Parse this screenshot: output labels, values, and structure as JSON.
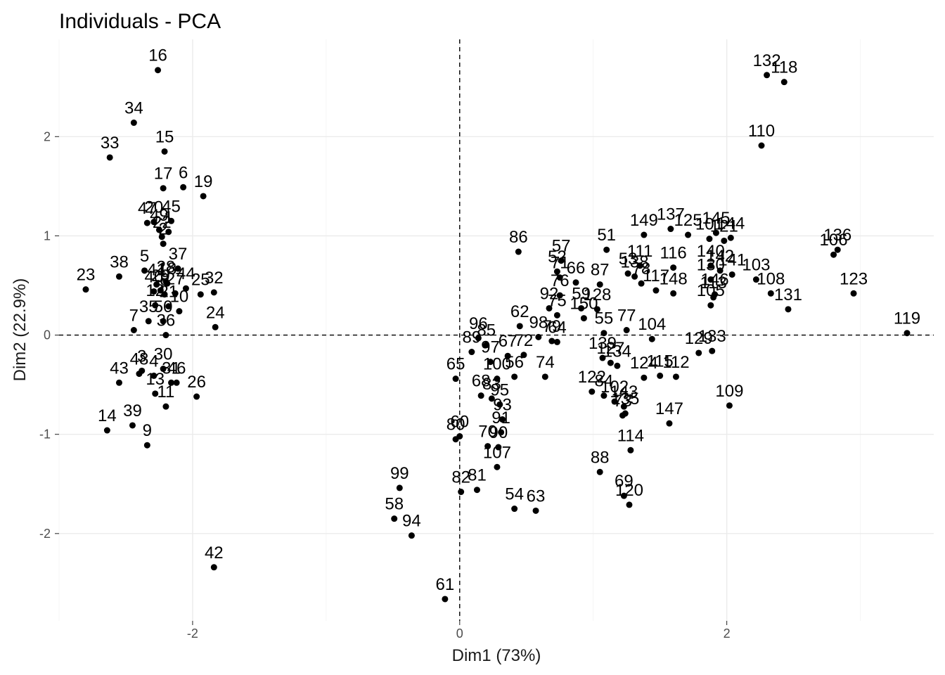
{
  "chart_data": {
    "type": "scatter",
    "title": "Individuals - PCA",
    "xlabel": "Dim1 (73%)",
    "ylabel": "Dim2 (22.9%)",
    "xlim": [
      -3.0,
      3.55
    ],
    "ylim": [
      -2.88,
      2.98
    ],
    "xticks": [
      -2,
      0,
      2
    ],
    "yticks": [
      -2,
      -1,
      0,
      1,
      2
    ],
    "grid": true,
    "reference_lines": "dashed at x=0 and y=0",
    "points": [
      {
        "label": "16",
        "x": -2.26,
        "y": 2.67
      },
      {
        "label": "34",
        "x": -2.44,
        "y": 2.14
      },
      {
        "label": "33",
        "x": -2.62,
        "y": 1.79
      },
      {
        "label": "15",
        "x": -2.21,
        "y": 1.85
      },
      {
        "label": "17",
        "x": -2.22,
        "y": 1.48
      },
      {
        "label": "6",
        "x": -2.07,
        "y": 1.49
      },
      {
        "label": "19",
        "x": -1.92,
        "y": 1.4
      },
      {
        "label": "47",
        "x": -2.34,
        "y": 1.13
      },
      {
        "label": "20",
        "x": -2.29,
        "y": 1.14
      },
      {
        "label": "45",
        "x": -2.16,
        "y": 1.15
      },
      {
        "label": "49",
        "x": -2.25,
        "y": 1.06
      },
      {
        "label": "1",
        "x": -2.18,
        "y": 1.04
      },
      {
        "label": "22",
        "x": -2.23,
        "y": 0.99
      },
      {
        "label": "2",
        "x": -2.22,
        "y": 0.92
      },
      {
        "label": "37",
        "x": -2.11,
        "y": 0.67
      },
      {
        "label": "38",
        "x": -2.55,
        "y": 0.59
      },
      {
        "label": "5",
        "x": -2.36,
        "y": 0.65
      },
      {
        "label": "23",
        "x": -2.8,
        "y": 0.46
      },
      {
        "label": "41",
        "x": -2.27,
        "y": 0.51
      },
      {
        "label": "18",
        "x": -2.19,
        "y": 0.52
      },
      {
        "label": "28",
        "x": -2.2,
        "y": 0.54
      },
      {
        "label": "44",
        "x": -2.05,
        "y": 0.47
      },
      {
        "label": "25",
        "x": -1.94,
        "y": 0.41
      },
      {
        "label": "32",
        "x": -1.84,
        "y": 0.43
      },
      {
        "label": "29",
        "x": -2.24,
        "y": 0.45
      },
      {
        "label": "40",
        "x": -2.29,
        "y": 0.44
      },
      {
        "label": "8",
        "x": -2.21,
        "y": 0.41
      },
      {
        "label": "27",
        "x": -2.13,
        "y": 0.42
      },
      {
        "label": "12",
        "x": -2.28,
        "y": 0.3
      },
      {
        "label": "21",
        "x": -2.18,
        "y": 0.29
      },
      {
        "label": "10",
        "x": -2.1,
        "y": 0.24
      },
      {
        "label": "24",
        "x": -1.83,
        "y": 0.08
      },
      {
        "label": "7",
        "x": -2.44,
        "y": 0.05
      },
      {
        "label": "50",
        "x": -2.22,
        "y": 0.14
      },
      {
        "label": "35",
        "x": -2.33,
        "y": 0.14
      },
      {
        "label": "36",
        "x": -2.2,
        "y": 0.0
      },
      {
        "label": "3",
        "x": -2.38,
        "y": -0.36
      },
      {
        "label": "30",
        "x": -2.22,
        "y": -0.34
      },
      {
        "label": "48",
        "x": -2.4,
        "y": -0.39
      },
      {
        "label": "43",
        "x": -2.55,
        "y": -0.48
      },
      {
        "label": "4",
        "x": -2.29,
        "y": -0.41
      },
      {
        "label": "31",
        "x": -2.16,
        "y": -0.48
      },
      {
        "label": "26",
        "x": -1.97,
        "y": -0.62
      },
      {
        "label": "13",
        "x": -2.28,
        "y": -0.59
      },
      {
        "label": "46",
        "x": -2.12,
        "y": -0.48
      },
      {
        "label": "11",
        "x": -2.2,
        "y": -0.72
      },
      {
        "label": "39",
        "x": -2.45,
        "y": -0.91
      },
      {
        "label": "14",
        "x": -2.64,
        "y": -0.96
      },
      {
        "label": "9",
        "x": -2.34,
        "y": -1.11
      },
      {
        "label": "42",
        "x": -1.84,
        "y": -2.34
      },
      {
        "label": "86",
        "x": 0.44,
        "y": 0.84
      },
      {
        "label": "57",
        "x": 0.76,
        "y": 0.75
      },
      {
        "label": "52",
        "x": 0.73,
        "y": 0.64
      },
      {
        "label": "71",
        "x": 0.75,
        "y": 0.58
      },
      {
        "label": "66",
        "x": 0.87,
        "y": 0.53
      },
      {
        "label": "87",
        "x": 1.05,
        "y": 0.51
      },
      {
        "label": "76",
        "x": 0.75,
        "y": 0.4
      },
      {
        "label": "51",
        "x": 1.1,
        "y": 0.86
      },
      {
        "label": "53",
        "x": 1.26,
        "y": 0.62
      },
      {
        "label": "149",
        "x": 1.38,
        "y": 1.01
      },
      {
        "label": "137",
        "x": 1.58,
        "y": 1.07
      },
      {
        "label": "125",
        "x": 1.71,
        "y": 1.01
      },
      {
        "label": "145",
        "x": 1.92,
        "y": 1.03
      },
      {
        "label": "101",
        "x": 1.87,
        "y": 0.97
      },
      {
        "label": "121",
        "x": 1.98,
        "y": 0.95
      },
      {
        "label": "144",
        "x": 2.03,
        "y": 0.98
      },
      {
        "label": "111",
        "x": 1.35,
        "y": 0.7
      },
      {
        "label": "116",
        "x": 1.6,
        "y": 0.68
      },
      {
        "label": "140",
        "x": 1.88,
        "y": 0.7
      },
      {
        "label": "142",
        "x": 1.95,
        "y": 0.65
      },
      {
        "label": "141",
        "x": 2.04,
        "y": 0.61
      },
      {
        "label": "103",
        "x": 2.22,
        "y": 0.56
      },
      {
        "label": "138",
        "x": 1.31,
        "y": 0.59
      },
      {
        "label": "78",
        "x": 1.36,
        "y": 0.52
      },
      {
        "label": "117",
        "x": 1.47,
        "y": 0.45
      },
      {
        "label": "148",
        "x": 1.6,
        "y": 0.42
      },
      {
        "label": "130",
        "x": 1.88,
        "y": 0.56
      },
      {
        "label": "146",
        "x": 1.91,
        "y": 0.41
      },
      {
        "label": "113",
        "x": 1.9,
        "y": 0.38
      },
      {
        "label": "105",
        "x": 1.88,
        "y": 0.3
      },
      {
        "label": "108",
        "x": 2.33,
        "y": 0.42
      },
      {
        "label": "131",
        "x": 2.46,
        "y": 0.26
      },
      {
        "label": "106",
        "x": 2.8,
        "y": 0.81
      },
      {
        "label": "136",
        "x": 2.83,
        "y": 0.86
      },
      {
        "label": "123",
        "x": 2.95,
        "y": 0.42
      },
      {
        "label": "119",
        "x": 3.35,
        "y": 0.02
      },
      {
        "label": "110",
        "x": 2.26,
        "y": 1.91
      },
      {
        "label": "132",
        "x": 2.3,
        "y": 2.62
      },
      {
        "label": "118",
        "x": 2.43,
        "y": 2.55
      },
      {
        "label": "92",
        "x": 0.67,
        "y": 0.27
      },
      {
        "label": "75",
        "x": 0.73,
        "y": 0.2
      },
      {
        "label": "59",
        "x": 0.91,
        "y": 0.27
      },
      {
        "label": "128",
        "x": 1.03,
        "y": 0.26
      },
      {
        "label": "150",
        "x": 0.93,
        "y": 0.17
      },
      {
        "label": "55",
        "x": 1.08,
        "y": 0.02
      },
      {
        "label": "77",
        "x": 1.25,
        "y": 0.05
      },
      {
        "label": "104",
        "x": 1.44,
        "y": -0.04
      },
      {
        "label": "62",
        "x": 0.45,
        "y": 0.09
      },
      {
        "label": "98",
        "x": 0.59,
        "y": -0.02
      },
      {
        "label": "79",
        "x": 0.69,
        "y": -0.06
      },
      {
        "label": "64",
        "x": 0.73,
        "y": -0.07
      },
      {
        "label": "139",
        "x": 1.07,
        "y": -0.23
      },
      {
        "label": "127",
        "x": 1.13,
        "y": -0.28
      },
      {
        "label": "134",
        "x": 1.18,
        "y": -0.31
      },
      {
        "label": "124",
        "x": 1.38,
        "y": -0.43
      },
      {
        "label": "115",
        "x": 1.5,
        "y": -0.41
      },
      {
        "label": "112",
        "x": 1.62,
        "y": -0.42
      },
      {
        "label": "129",
        "x": 1.79,
        "y": -0.18
      },
      {
        "label": "133",
        "x": 1.89,
        "y": -0.16
      },
      {
        "label": "96",
        "x": 0.14,
        "y": -0.03
      },
      {
        "label": "89",
        "x": 0.09,
        "y": -0.17
      },
      {
        "label": "85",
        "x": 0.2,
        "y": -0.1
      },
      {
        "label": "67",
        "x": 0.36,
        "y": -0.21
      },
      {
        "label": "97",
        "x": 0.23,
        "y": -0.27
      },
      {
        "label": "65",
        "x": -0.03,
        "y": -0.44
      },
      {
        "label": "72",
        "x": 0.48,
        "y": -0.2
      },
      {
        "label": "74",
        "x": 0.64,
        "y": -0.42
      },
      {
        "label": "100",
        "x": 0.28,
        "y": -0.44
      },
      {
        "label": "56",
        "x": 0.41,
        "y": -0.42
      },
      {
        "label": "122",
        "x": 0.99,
        "y": -0.57
      },
      {
        "label": "84",
        "x": 1.08,
        "y": -0.61
      },
      {
        "label": "102",
        "x": 1.16,
        "y": -0.67
      },
      {
        "label": "143",
        "x": 1.23,
        "y": -0.72
      },
      {
        "label": "135",
        "x": 1.24,
        "y": -0.79
      },
      {
        "label": "73",
        "x": 1.22,
        "y": -0.81
      },
      {
        "label": "147",
        "x": 1.57,
        "y": -0.89
      },
      {
        "label": "109",
        "x": 2.02,
        "y": -0.71
      },
      {
        "label": "114",
        "x": 1.28,
        "y": -1.16
      },
      {
        "label": "68",
        "x": 0.16,
        "y": -0.61
      },
      {
        "label": "83",
        "x": 0.24,
        "y": -0.64
      },
      {
        "label": "95",
        "x": 0.3,
        "y": -0.7
      },
      {
        "label": "93",
        "x": 0.32,
        "y": -0.85
      },
      {
        "label": "60",
        "x": 0.0,
        "y": -1.02
      },
      {
        "label": "80",
        "x": -0.03,
        "y": -1.05
      },
      {
        "label": "91",
        "x": 0.31,
        "y": -0.98
      },
      {
        "label": "70",
        "x": 0.21,
        "y": -1.12
      },
      {
        "label": "90",
        "x": 0.29,
        "y": -1.13
      },
      {
        "label": "82",
        "x": 0.01,
        "y": -1.58
      },
      {
        "label": "81",
        "x": 0.13,
        "y": -1.56
      },
      {
        "label": "107",
        "x": 0.28,
        "y": -1.33
      },
      {
        "label": "54",
        "x": 0.41,
        "y": -1.75
      },
      {
        "label": "63",
        "x": 0.57,
        "y": -1.77
      },
      {
        "label": "88",
        "x": 1.05,
        "y": -1.38
      },
      {
        "label": "69",
        "x": 1.23,
        "y": -1.62
      },
      {
        "label": "120",
        "x": 1.27,
        "y": -1.71
      },
      {
        "label": "99",
        "x": -0.45,
        "y": -1.54
      },
      {
        "label": "58",
        "x": -0.49,
        "y": -1.85
      },
      {
        "label": "94",
        "x": -0.36,
        "y": -2.02
      },
      {
        "label": "61",
        "x": -0.11,
        "y": -2.66
      }
    ]
  }
}
